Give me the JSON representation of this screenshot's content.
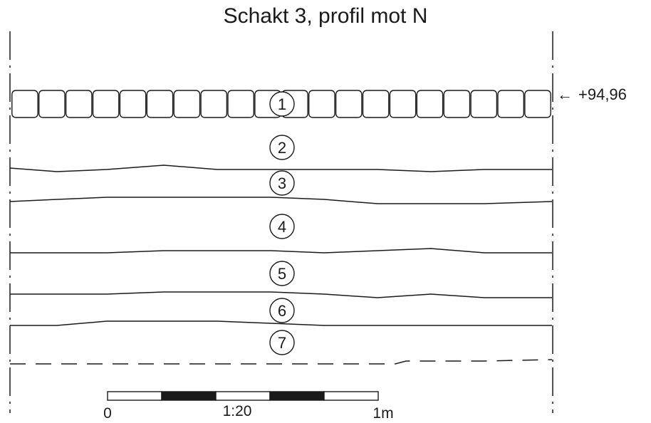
{
  "title": "Schakt 3, profil mot N",
  "elevation_marker": {
    "arrow": "←",
    "value": "+94,96"
  },
  "layers": [
    {
      "number": "1"
    },
    {
      "number": "2"
    },
    {
      "number": "3"
    },
    {
      "number": "4"
    },
    {
      "number": "5"
    },
    {
      "number": "6"
    },
    {
      "number": "7"
    }
  ],
  "scale_bar": {
    "label_start": "0",
    "label_ratio": "1:20",
    "label_end": "1m"
  },
  "colors": {
    "line": "#1a1a1a",
    "background": "#ffffff"
  }
}
